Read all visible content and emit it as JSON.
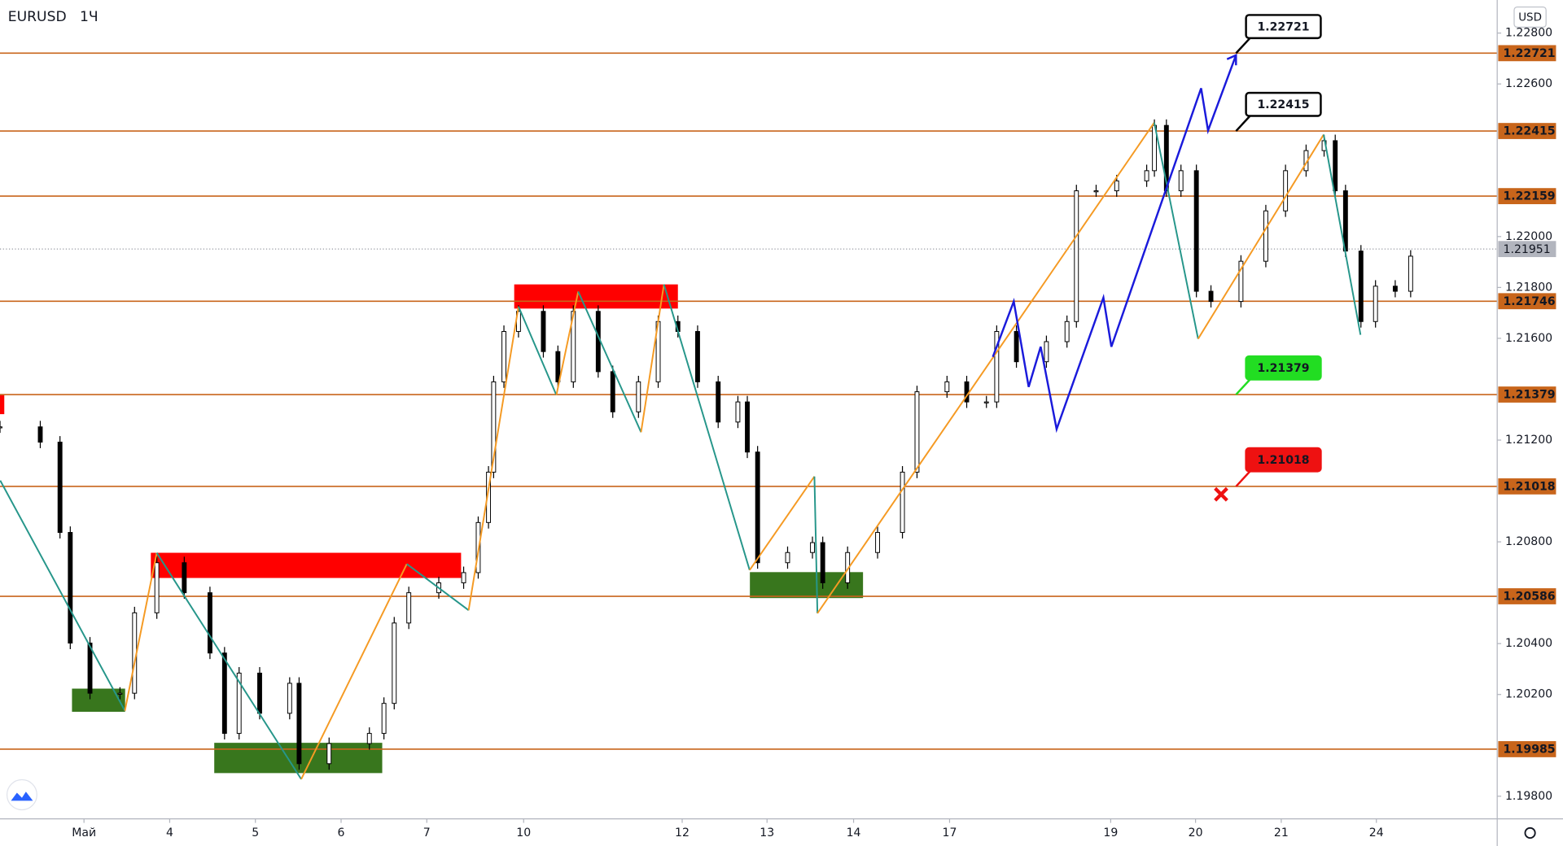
{
  "chart_data": {
    "type": "candlestick",
    "title": "EURUSD",
    "interval": "1Ч",
    "currency": "USD",
    "xlim": [
      -0.98,
      16.49
    ],
    "ylim": [
      1.19711,
      1.2293
    ],
    "xticks": [
      {
        "value": 0,
        "label": "Май"
      },
      {
        "value": 1,
        "label": "4"
      },
      {
        "value": 2,
        "label": "5"
      },
      {
        "value": 3,
        "label": "6"
      },
      {
        "value": 4,
        "label": "7"
      },
      {
        "value": 5.13,
        "label": "10"
      },
      {
        "value": 6.98,
        "label": "12"
      },
      {
        "value": 7.97,
        "label": "13"
      },
      {
        "value": 8.98,
        "label": "14"
      },
      {
        "value": 10.1,
        "label": "17"
      },
      {
        "value": 11.98,
        "label": "19"
      },
      {
        "value": 12.97,
        "label": "20"
      },
      {
        "value": 13.97,
        "label": "21"
      },
      {
        "value": 15.08,
        "label": "24"
      }
    ],
    "yticks": [
      {
        "value": 1.228,
        "label": "1.22800"
      },
      {
        "value": 1.226,
        "label": "1.22600"
      },
      {
        "value": 1.22,
        "label": "1.22000"
      },
      {
        "value": 1.218,
        "label": "1.21800"
      },
      {
        "value": 1.216,
        "label": "1.21600"
      },
      {
        "value": 1.212,
        "label": "1.21200"
      },
      {
        "value": 1.208,
        "label": "1.20800"
      },
      {
        "value": 1.204,
        "label": "1.20400"
      },
      {
        "value": 1.202,
        "label": "1.20200"
      },
      {
        "value": 1.198,
        "label": "1.19800"
      }
    ],
    "x": [
      -0.98,
      -0.51,
      -0.28,
      -0.16,
      0.07,
      0.42,
      0.59,
      0.85,
      1.17,
      1.47,
      1.64,
      1.81,
      2.05,
      2.4,
      2.51,
      2.86,
      3.33,
      3.5,
      3.62,
      3.79,
      4.14,
      4.43,
      4.6,
      4.72,
      4.78,
      4.9,
      5.07,
      5.36,
      5.53,
      5.71,
      6.0,
      6.17,
      6.47,
      6.7,
      6.93,
      7.16,
      7.4,
      7.63,
      7.74,
      7.86,
      8.21,
      8.5,
      8.62,
      8.91,
      9.26,
      9.55,
      9.72,
      10.07,
      10.3,
      10.53,
      10.65,
      10.88,
      11.23,
      11.47,
      11.58,
      11.81,
      12.05,
      12.4,
      12.49,
      12.63,
      12.8,
      12.98,
      13.15,
      13.5,
      13.79,
      14.02,
      14.26,
      14.47,
      14.6,
      14.72,
      14.9,
      15.07,
      15.3,
      15.48
    ],
    "values": [
      1.21252,
      1.21192,
      1.20837,
      1.20402,
      1.20205,
      1.20205,
      1.20521,
      1.20718,
      1.206,
      1.20363,
      1.20047,
      1.20284,
      1.20126,
      1.20244,
      1.19928,
      1.20007,
      1.20047,
      1.20165,
      1.20481,
      1.206,
      1.20639,
      1.20679,
      1.20876,
      1.21074,
      1.21429,
      1.21627,
      1.21706,
      1.21548,
      1.21429,
      1.21706,
      1.21469,
      1.21311,
      1.21429,
      1.21666,
      1.21627,
      1.21429,
      1.21271,
      1.2135,
      1.21153,
      1.20718,
      1.20758,
      1.20797,
      1.20639,
      1.20758,
      1.20837,
      1.21074,
      1.2139,
      1.21429,
      1.2135,
      1.2135,
      1.21627,
      1.21508,
      1.21587,
      1.21666,
      1.2218,
      1.2218,
      1.22219,
      1.22259,
      1.22437,
      1.2218,
      1.22259,
      1.21785,
      1.21745,
      1.21903,
      1.22101,
      1.22259,
      1.22338,
      1.22377,
      1.2218,
      1.21943,
      1.21666,
      1.21805,
      1.21785,
      1.21923
    ],
    "current_price": 1.21951,
    "levels": [
      1.22721,
      1.22415,
      1.22159,
      1.21746,
      1.21379,
      1.21018,
      1.20586,
      1.19985
    ],
    "level_color": "#c8651b",
    "zones": [
      {
        "x": [
          5.02,
          6.93
        ],
        "y": [
          1.21717,
          1.21812
        ],
        "color": "#ff0000"
      },
      {
        "x": [
          0.78,
          4.4
        ],
        "y": [
          1.20658,
          1.20757
        ],
        "color": "#ff0000"
      },
      {
        "x": [
          -0.98,
          -0.93
        ],
        "y": [
          1.21302,
          1.21377
        ],
        "color": "#ff0000"
      },
      {
        "x": [
          -0.14,
          0.48
        ],
        "y": [
          1.20132,
          1.20223
        ],
        "color": "#38761d"
      },
      {
        "x": [
          1.52,
          3.48
        ],
        "y": [
          1.19891,
          1.2001
        ],
        "color": "#38761d"
      },
      {
        "x": [
          7.77,
          9.09
        ],
        "y": [
          1.20579,
          1.20681
        ],
        "color": "#38761d"
      }
    ],
    "zigzag": {
      "up_color": "#f59a23",
      "down_color": "#26968a",
      "x": [
        -0.977,
        0.477,
        0.849,
        2.535,
        3.767,
        4.488,
        5.07,
        5.512,
        5.767,
        6.5,
        6.767,
        7.767,
        8.523,
        8.558,
        12.488,
        13.0,
        14.465,
        14.895
      ],
      "values": [
        1.21041,
        1.20136,
        1.20757,
        1.19867,
        1.20713,
        1.20531,
        1.21725,
        1.21377,
        1.21784,
        1.21231,
        1.21812,
        1.20689,
        1.21057,
        1.20519,
        1.22448,
        1.21598,
        1.22401,
        1.21614
      ]
    },
    "projection": {
      "color": "#1a1adb",
      "x": [
        10.605,
        10.849,
        11.023,
        11.163,
        11.349,
        11.895,
        11.988,
        13.035,
        13.116,
        13.442
      ],
      "values": [
        1.21527,
        1.21745,
        1.21409,
        1.21567,
        1.21243,
        1.2176,
        1.21567,
        1.22583,
        1.22417,
        1.22713
      ]
    },
    "annotations": [
      {
        "label": "1.22721",
        "color": "#000000"
      },
      {
        "label": "1.22415",
        "color": "#000000"
      },
      {
        "label": "1.21379",
        "color": "#22dd22"
      },
      {
        "label": "1.21018",
        "color": "#ee1111"
      }
    ]
  }
}
